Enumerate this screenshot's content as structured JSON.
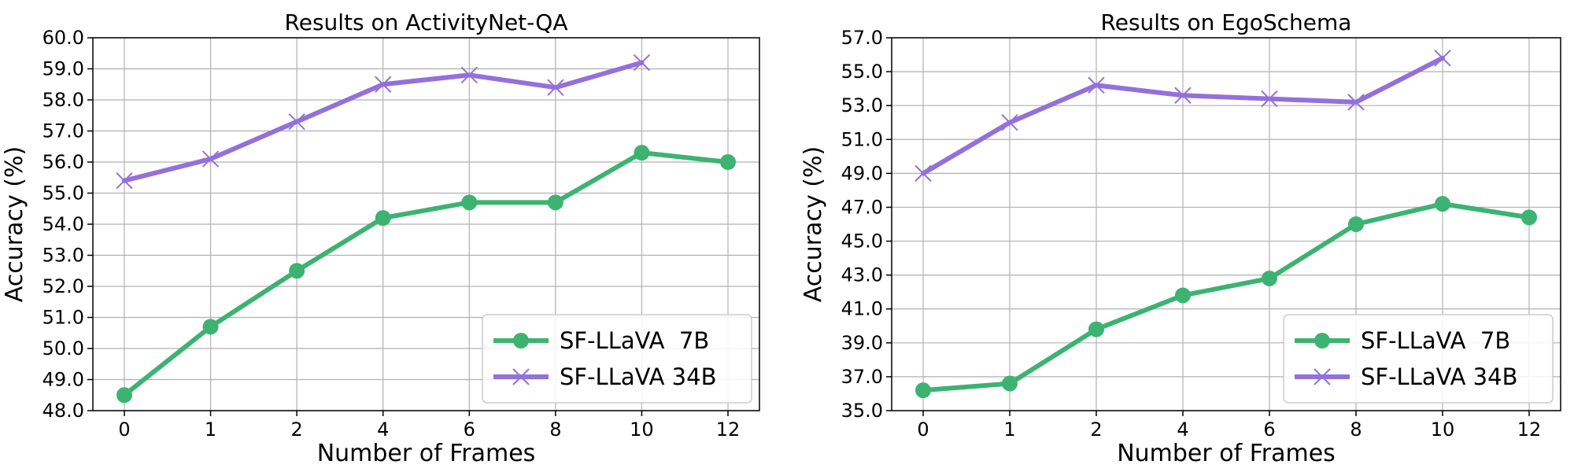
{
  "chart_data": [
    {
      "type": "line",
      "title": "Results on ActivityNet-QA",
      "xlabel": "Number of Frames",
      "ylabel": "Accuracy (%)",
      "categories": [
        "0",
        "1",
        "2",
        "4",
        "6",
        "8",
        "10",
        "12"
      ],
      "yticks": [
        "48.0",
        "49.0",
        "50.0",
        "51.0",
        "52.0",
        "53.0",
        "54.0",
        "55.0",
        "56.0",
        "57.0",
        "58.0",
        "59.0",
        "60.0"
      ],
      "ylim": [
        48,
        60
      ],
      "grid": true,
      "legend_position": "bottom-right",
      "series": [
        {
          "name": "SF-LLaVA  7B",
          "color": "#3cb371",
          "marker": "circle",
          "values": [
            48.5,
            50.7,
            52.5,
            54.2,
            54.7,
            54.7,
            56.3,
            56.0
          ]
        },
        {
          "name": "SF-LLaVA 34B",
          "color": "#9370db",
          "marker": "x",
          "values": [
            55.4,
            56.1,
            57.3,
            58.5,
            58.8,
            58.4,
            59.2,
            null
          ]
        }
      ]
    },
    {
      "type": "line",
      "title": "Results on EgoSchema",
      "xlabel": "Number of Frames",
      "ylabel": "Accuracy (%)",
      "categories": [
        "0",
        "1",
        "2",
        "4",
        "6",
        "8",
        "10",
        "12"
      ],
      "yticks": [
        "35.0",
        "37.0",
        "39.0",
        "41.0",
        "43.0",
        "45.0",
        "47.0",
        "49.0",
        "51.0",
        "53.0",
        "55.0",
        "57.0"
      ],
      "ylim": [
        35,
        57
      ],
      "grid": true,
      "legend_position": "bottom-right",
      "series": [
        {
          "name": "SF-LLaVA  7B",
          "color": "#3cb371",
          "marker": "circle",
          "values": [
            36.2,
            36.6,
            39.8,
            41.8,
            42.8,
            46.0,
            47.2,
            46.4
          ]
        },
        {
          "name": "SF-LLaVA 34B",
          "color": "#9370db",
          "marker": "x",
          "values": [
            49.0,
            52.0,
            54.2,
            53.6,
            53.4,
            53.2,
            55.8,
            null
          ]
        }
      ]
    }
  ]
}
